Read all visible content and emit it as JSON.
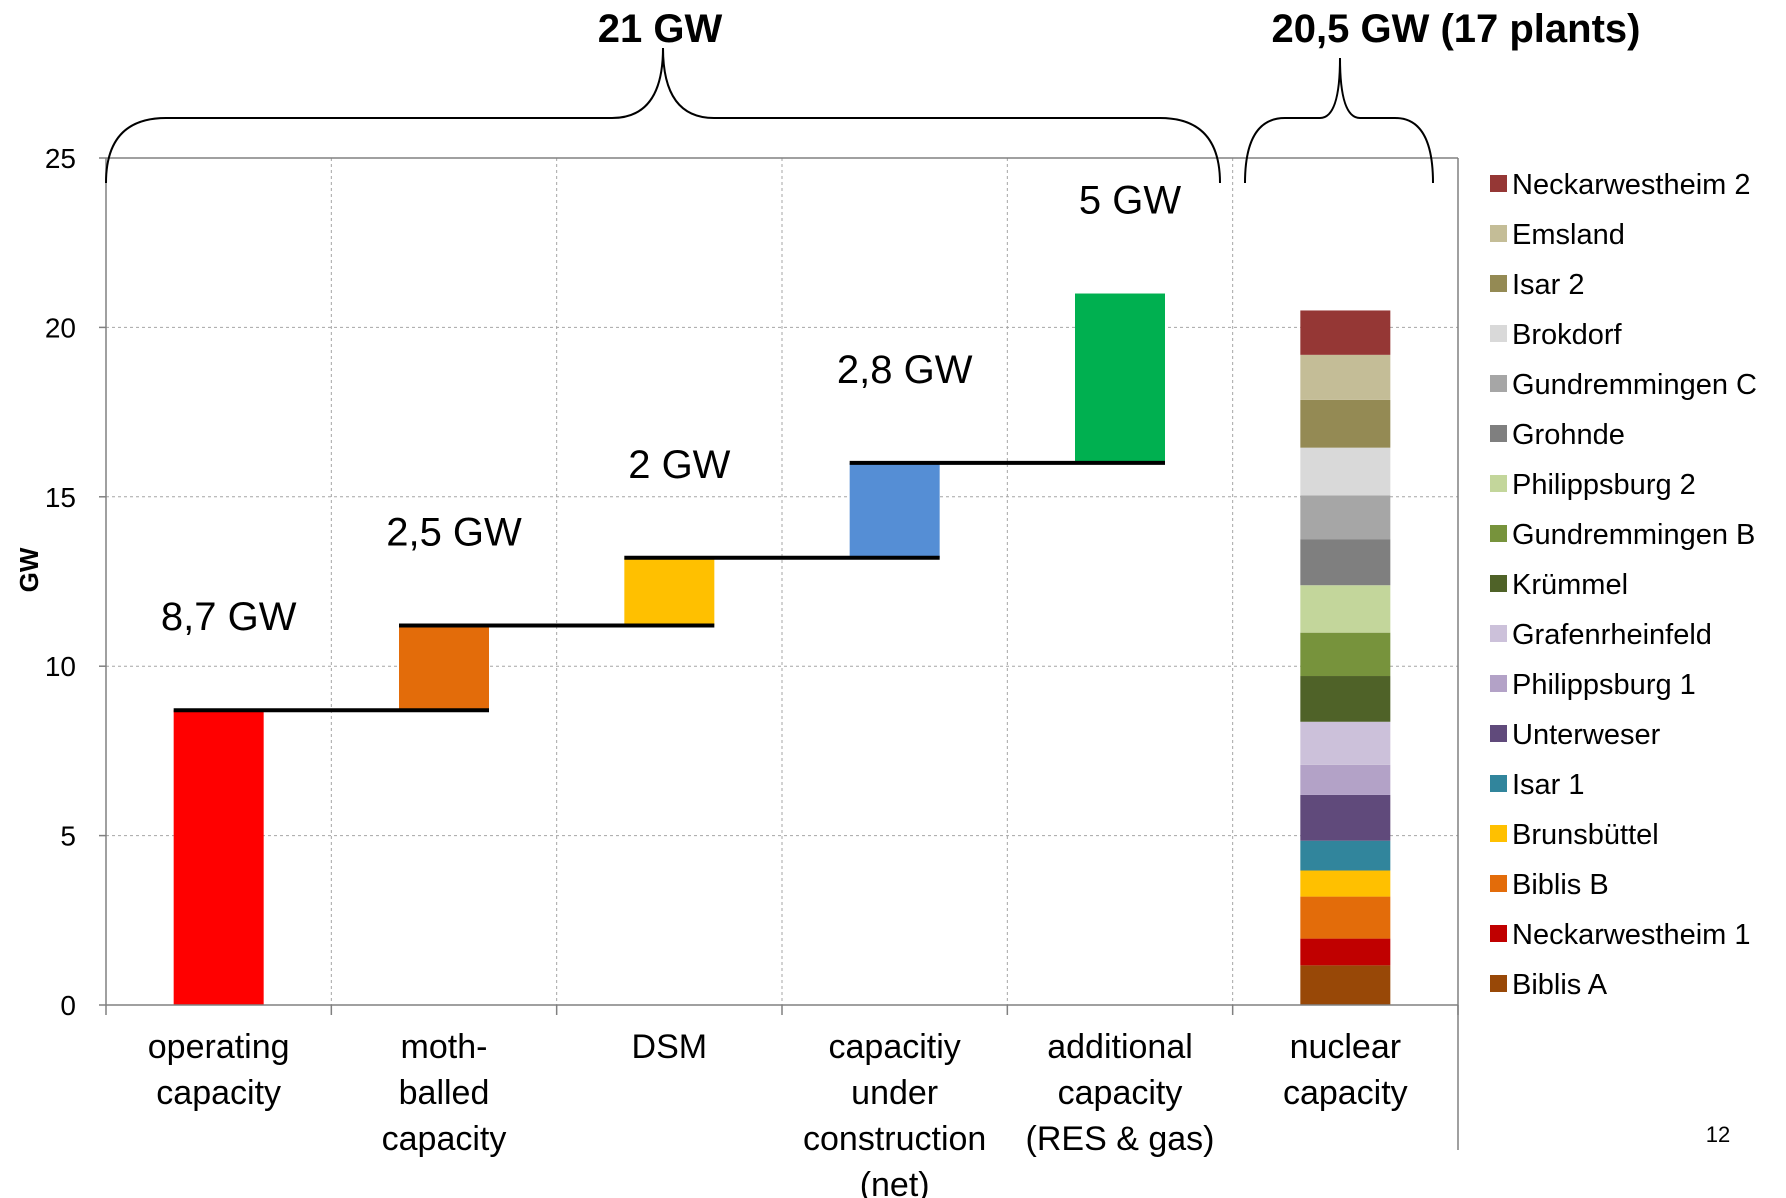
{
  "chart_data": {
    "type": "bar",
    "subtype": "waterfall-and-stacked",
    "ylabel": "GW",
    "ylim": [
      0,
      25
    ],
    "yticks": [
      "0",
      "5",
      "10",
      "15",
      "20",
      "25"
    ],
    "grid": true,
    "legend_position": "right",
    "categories": [
      [
        "operating",
        "capacity"
      ],
      [
        "moth-",
        "balled",
        "capacity"
      ],
      [
        "DSM"
      ],
      [
        "capacitiy",
        "under",
        "construction",
        "(net)"
      ],
      [
        "additional",
        "capacity",
        "(RES & gas)"
      ],
      [
        "nuclear",
        "capacity"
      ]
    ],
    "waterfall": [
      {
        "label": "8,7 GW",
        "base": 0,
        "value": 8.7,
        "color": "#ff0000"
      },
      {
        "label": "2,5 GW",
        "base": 8.7,
        "value": 2.5,
        "color": "#e36c0a"
      },
      {
        "label": "2 GW",
        "base": 11.2,
        "value": 2.0,
        "color": "#ffc000"
      },
      {
        "label": "2,8 GW",
        "base": 13.2,
        "value": 2.8,
        "color": "#558ed5"
      },
      {
        "label": "5 GW",
        "base": 16.0,
        "value": 5.0,
        "color": "#00b050"
      }
    ],
    "step_lines": [
      8.7,
      11.2,
      13.2,
      16.0
    ],
    "nuclear_stack": [
      {
        "name": "Biblis A",
        "value": 1.17,
        "color": "#984807"
      },
      {
        "name": "Neckarwestheim 1",
        "value": 0.79,
        "color": "#c00000"
      },
      {
        "name": "Biblis B",
        "value": 1.24,
        "color": "#e36c0a"
      },
      {
        "name": "Brunsbüttel",
        "value": 0.77,
        "color": "#ffc000"
      },
      {
        "name": "Isar 1",
        "value": 0.88,
        "color": "#31859c"
      },
      {
        "name": "Unterweser",
        "value": 1.35,
        "color": "#604a7b"
      },
      {
        "name": "Philippsburg 1",
        "value": 0.89,
        "color": "#b3a2c7"
      },
      {
        "name": "Grafenrheinfeld",
        "value": 1.27,
        "color": "#ccc1da"
      },
      {
        "name": "Krümmel",
        "value": 1.35,
        "color": "#4f6228"
      },
      {
        "name": "Gundremmingen B",
        "value": 1.28,
        "color": "#77933c"
      },
      {
        "name": "Philippsburg 2",
        "value": 1.4,
        "color": "#c3d69b"
      },
      {
        "name": "Grohnde",
        "value": 1.36,
        "color": "#7f7f7f"
      },
      {
        "name": "Gundremmingen C",
        "value": 1.29,
        "color": "#a6a6a6"
      },
      {
        "name": "Brokdorf",
        "value": 1.41,
        "color": "#d9d9d9"
      },
      {
        "name": "Isar 2",
        "value": 1.41,
        "color": "#948a54"
      },
      {
        "name": "Emsland",
        "value": 1.33,
        "color": "#c4bd97"
      },
      {
        "name": "Neckarwestheim 2",
        "value": 1.31,
        "color": "#953735"
      }
    ],
    "annotations": {
      "brace_left": "21 GW",
      "brace_right": "20,5 GW (17 plants)"
    }
  },
  "page_number": "12"
}
